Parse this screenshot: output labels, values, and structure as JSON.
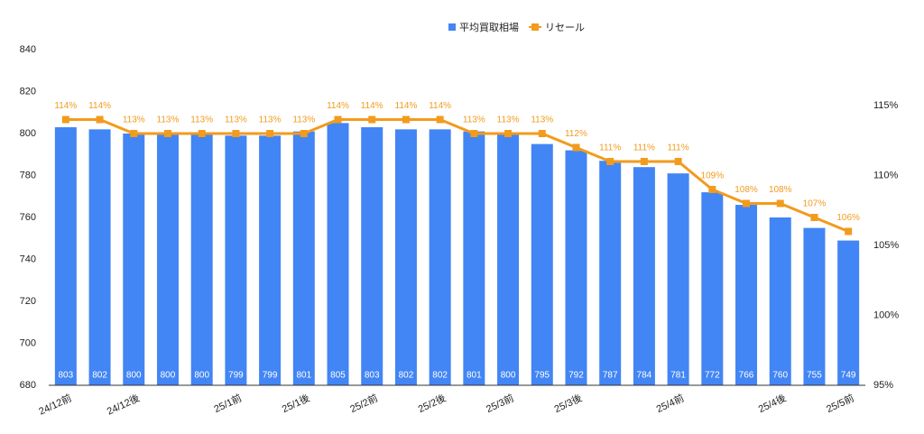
{
  "chart_data": {
    "type": "bar_line",
    "categories": [
      "24/12前",
      null,
      "24/12後",
      null,
      null,
      "25/1前",
      null,
      "25/1後",
      null,
      "25/2前",
      null,
      "25/2後",
      null,
      "25/3前",
      null,
      "25/3後",
      null,
      null,
      "25/4前",
      null,
      null,
      "25/4後",
      null,
      "25/5前"
    ],
    "series": [
      {
        "name": "平均買取相場",
        "color": "#4285f4",
        "type": "bar",
        "values": [
          803,
          802,
          800,
          800,
          800,
          799,
          799,
          801,
          805,
          803,
          802,
          802,
          801,
          800,
          795,
          792,
          787,
          784,
          781,
          772,
          766,
          760,
          755,
          749
        ]
      },
      {
        "name": "リセール",
        "color": "#f29b1d",
        "type": "line",
        "axis": "y2",
        "values": [
          114,
          114,
          113,
          113,
          113,
          113,
          113,
          113,
          114,
          114,
          114,
          114,
          113,
          113,
          113,
          112,
          111,
          111,
          111,
          109,
          108,
          108,
          107,
          106
        ],
        "value_labels": [
          "114%",
          "114%",
          "113%",
          "113%",
          "113%",
          "113%",
          "113%",
          "113%",
          "114%",
          "114%",
          "114%",
          "114%",
          "113%",
          "113%",
          "113%",
          "112%",
          "111%",
          "111%",
          "111%",
          "109%",
          "108%",
          "108%",
          "107%",
          "106%"
        ]
      }
    ],
    "ylim": [
      680,
      840
    ],
    "yticks": [
      680,
      700,
      720,
      740,
      760,
      780,
      800,
      820,
      840
    ],
    "y2lim": [
      95,
      119
    ],
    "y2ticks": [
      {
        "value": 95,
        "label": "95%"
      },
      {
        "value": 100,
        "label": "100%"
      },
      {
        "value": 105,
        "label": "105%"
      },
      {
        "value": 110,
        "label": "110%"
      },
      {
        "value": 115,
        "label": "115%"
      }
    ],
    "grid": false,
    "legend": "top"
  }
}
